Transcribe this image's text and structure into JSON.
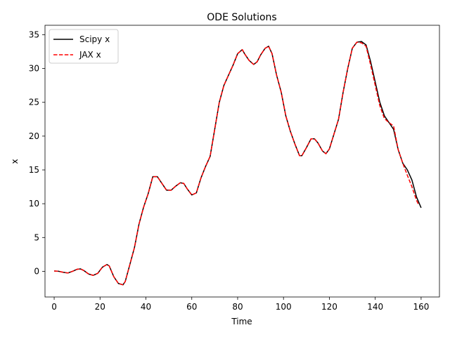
{
  "chart_data": {
    "type": "line",
    "title": "ODE Solutions",
    "xlabel": "Time",
    "ylabel": "x",
    "xlim": [
      -4,
      168
    ],
    "ylim": [
      -3.8,
      36.4
    ],
    "xticks": [
      0,
      20,
      40,
      60,
      80,
      100,
      120,
      140,
      160
    ],
    "yticks": [
      0,
      5,
      10,
      15,
      20,
      25,
      30,
      35
    ],
    "grid": false,
    "legend": "top-left",
    "series": [
      {
        "name": "Scipy x",
        "color": "#000000",
        "style": "solid",
        "x": [
          0,
          2,
          4,
          6,
          8,
          10,
          11.5,
          13,
          15,
          17,
          19,
          21,
          23,
          24,
          26,
          28,
          30,
          31,
          33,
          35,
          37,
          39,
          41,
          43,
          45,
          47,
          49,
          51,
          53,
          55,
          56.5,
          58,
          60,
          62,
          64,
          66,
          68,
          70,
          72,
          74,
          76,
          78,
          80,
          82,
          83,
          85,
          87,
          88.5,
          90,
          92,
          93.5,
          95,
          97,
          99,
          101,
          103,
          105,
          107,
          108,
          110,
          112,
          113.5,
          115,
          117,
          118.5,
          120,
          122,
          124,
          126,
          128,
          130,
          132,
          134,
          136,
          138,
          140,
          142,
          144,
          146,
          148,
          150,
          152,
          154,
          156,
          158,
          160
        ],
        "y": [
          0.05,
          0.0,
          -0.15,
          -0.25,
          0.0,
          0.3,
          0.35,
          0.1,
          -0.4,
          -0.6,
          -0.3,
          0.6,
          1.0,
          0.8,
          -0.8,
          -1.8,
          -2.0,
          -1.5,
          1.0,
          3.5,
          7.0,
          9.5,
          11.5,
          14.0,
          14.0,
          13.0,
          12.0,
          12.0,
          12.6,
          13.1,
          13.0,
          12.2,
          11.3,
          11.6,
          13.8,
          15.5,
          17.0,
          21.0,
          25.0,
          27.5,
          29.0,
          30.5,
          32.2,
          32.8,
          32.2,
          31.2,
          30.6,
          31.0,
          32.0,
          33.0,
          33.3,
          32.2,
          29.0,
          26.5,
          23.0,
          20.7,
          18.8,
          17.1,
          17.1,
          18.3,
          19.6,
          19.6,
          19.0,
          17.8,
          17.4,
          18.1,
          20.3,
          22.5,
          26.5,
          30.0,
          33.0,
          33.9,
          34.0,
          33.5,
          31.0,
          28.0,
          25.0,
          23.0,
          22.0,
          21.0,
          18.0,
          16.0,
          15.0,
          13.5,
          11.0,
          9.4
        ]
      },
      {
        "name": "JAX x",
        "color": "#ff0000",
        "style": "dashed",
        "x": [
          0,
          2,
          4,
          6,
          8,
          10,
          11.5,
          13,
          15,
          17,
          19,
          21,
          23,
          24,
          26,
          28,
          30,
          31,
          33,
          35,
          37,
          39,
          41,
          43,
          45,
          47,
          49,
          51,
          53,
          55,
          56.5,
          58,
          60,
          62,
          64,
          66,
          68,
          70,
          72,
          74,
          76,
          78,
          80,
          82,
          83,
          85,
          87,
          88.5,
          90,
          92,
          93.5,
          95,
          97,
          99,
          101,
          103,
          105,
          107,
          108,
          110,
          112,
          113.5,
          115,
          117,
          118.5,
          120,
          122,
          124,
          126,
          128,
          130,
          132,
          134,
          136,
          138,
          140,
          142,
          144,
          146,
          148,
          150,
          152,
          154,
          156,
          158,
          159
        ],
        "y": [
          0.05,
          0.0,
          -0.15,
          -0.25,
          0.0,
          0.3,
          0.35,
          0.1,
          -0.4,
          -0.6,
          -0.3,
          0.6,
          1.0,
          0.8,
          -0.8,
          -1.8,
          -2.0,
          -1.5,
          1.0,
          3.5,
          7.0,
          9.5,
          11.5,
          14.0,
          14.0,
          13.0,
          12.0,
          12.0,
          12.6,
          13.1,
          13.0,
          12.2,
          11.3,
          11.6,
          13.8,
          15.5,
          17.0,
          21.0,
          25.0,
          27.5,
          29.0,
          30.5,
          32.2,
          32.8,
          32.2,
          31.2,
          30.6,
          31.0,
          32.0,
          33.0,
          33.3,
          32.2,
          29.0,
          26.5,
          23.0,
          20.7,
          18.8,
          17.1,
          17.1,
          18.3,
          19.6,
          19.6,
          19.0,
          17.8,
          17.4,
          18.1,
          20.3,
          22.5,
          26.5,
          30.0,
          33.0,
          33.9,
          33.8,
          33.3,
          30.5,
          27.5,
          24.5,
          22.6,
          22.0,
          21.5,
          18.0,
          16.0,
          14.2,
          12.5,
          10.5,
          9.8
        ]
      }
    ]
  }
}
